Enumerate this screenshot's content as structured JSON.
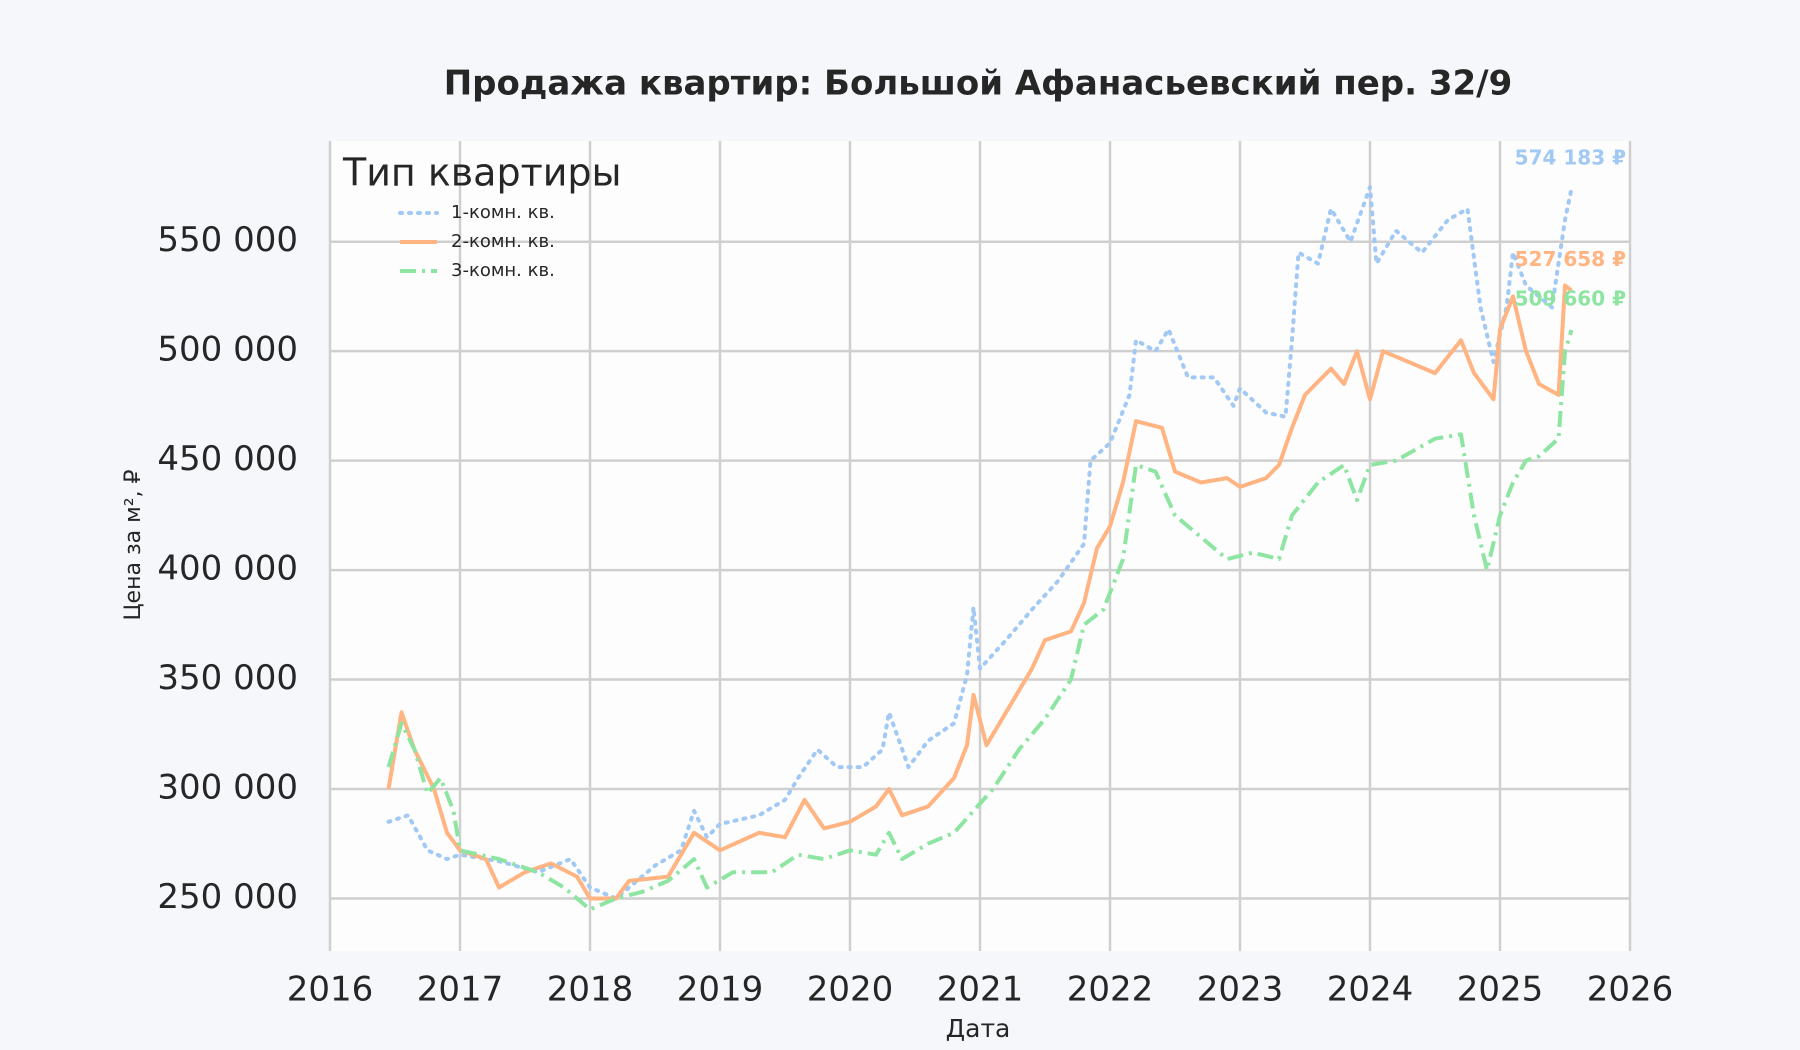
{
  "chart_data": {
    "type": "line",
    "title": "Продажа квартир: Большой Афанасьевский пер. 32/9",
    "x_label": "Дата",
    "y_label": "Цена за м², ₽",
    "legend_title": "Тип квартиры",
    "legend": "upper left",
    "grid": true,
    "xlim": [
      2016,
      2026
    ],
    "xticks": [
      2016,
      2017,
      2018,
      2019,
      2020,
      2021,
      2022,
      2023,
      2024,
      2025,
      2026
    ],
    "ylim": [
      226000,
      596000
    ],
    "yticks": [
      {
        "value": 250000,
        "label": "250 000"
      },
      {
        "value": 300000,
        "label": "300 000"
      },
      {
        "value": 350000,
        "label": "350 000"
      },
      {
        "value": 400000,
        "label": "400 000"
      },
      {
        "value": 450000,
        "label": "450 000"
      },
      {
        "value": 500000,
        "label": "500 000"
      },
      {
        "value": 550000,
        "label": "550 000"
      }
    ],
    "series": [
      {
        "name": "1-комн. кв.",
        "color": "#a1c9f4",
        "linestyle": "dotted",
        "x": [
          2016.45,
          2016.6,
          2016.75,
          2016.9,
          2017.0,
          2017.3,
          2017.6,
          2017.85,
          2018.0,
          2018.2,
          2018.5,
          2018.7,
          2018.8,
          2018.9,
          2019.0,
          2019.3,
          2019.5,
          2019.6,
          2019.75,
          2019.9,
          2020.1,
          2020.25,
          2020.3,
          2020.45,
          2020.6,
          2020.8,
          2020.9,
          2020.95,
          2021.0,
          2021.2,
          2021.4,
          2021.6,
          2021.8,
          2021.85,
          2022.0,
          2022.15,
          2022.2,
          2022.35,
          2022.45,
          2022.6,
          2022.8,
          2022.95,
          2023.0,
          2023.2,
          2023.35,
          2023.4,
          2023.45,
          2023.6,
          2023.7,
          2023.85,
          2024.0,
          2024.05,
          2024.2,
          2024.4,
          2024.6,
          2024.75,
          2024.85,
          2024.95,
          2025.05,
          2025.1,
          2025.2,
          2025.4,
          2025.5,
          2025.55
        ],
        "values": [
          285000,
          288000,
          272000,
          268000,
          270000,
          267000,
          262000,
          268000,
          255000,
          250000,
          265000,
          272000,
          290000,
          278000,
          284000,
          288000,
          295000,
          305000,
          318000,
          310000,
          310000,
          318000,
          335000,
          310000,
          322000,
          330000,
          352000,
          383000,
          355000,
          368000,
          382000,
          395000,
          412000,
          450000,
          458000,
          480000,
          505000,
          500000,
          510000,
          488000,
          488000,
          475000,
          483000,
          472000,
          470000,
          505000,
          545000,
          540000,
          565000,
          550000,
          575000,
          540000,
          555000,
          545000,
          560000,
          565000,
          520000,
          495000,
          520000,
          545000,
          530000,
          520000,
          560000,
          574183
        ]
      },
      {
        "name": "2-комн. кв.",
        "color": "#ffb482",
        "linestyle": "solid",
        "x": [
          2016.45,
          2016.55,
          2016.65,
          2016.8,
          2016.9,
          2017.0,
          2017.2,
          2017.3,
          2017.5,
          2017.7,
          2017.9,
          2018.0,
          2018.2,
          2018.3,
          2018.6,
          2018.8,
          2019.0,
          2019.3,
          2019.5,
          2019.65,
          2019.8,
          2020.0,
          2020.2,
          2020.3,
          2020.4,
          2020.6,
          2020.8,
          2020.9,
          2020.95,
          2021.05,
          2021.2,
          2021.4,
          2021.5,
          2021.7,
          2021.8,
          2021.9,
          2022.0,
          2022.1,
          2022.2,
          2022.4,
          2022.5,
          2022.7,
          2022.9,
          2023.0,
          2023.2,
          2023.3,
          2023.4,
          2023.5,
          2023.7,
          2023.8,
          2023.9,
          2024.0,
          2024.1,
          2024.3,
          2024.5,
          2024.7,
          2024.8,
          2024.95,
          2025.0,
          2025.1,
          2025.2,
          2025.3,
          2025.45,
          2025.5,
          2025.55
        ],
        "values": [
          300000,
          335000,
          318000,
          300000,
          280000,
          272000,
          268000,
          255000,
          262000,
          266000,
          260000,
          250000,
          250000,
          258000,
          260000,
          280000,
          272000,
          280000,
          278000,
          295000,
          282000,
          285000,
          292000,
          300000,
          288000,
          292000,
          305000,
          320000,
          343000,
          320000,
          335000,
          355000,
          368000,
          372000,
          385000,
          410000,
          420000,
          440000,
          468000,
          465000,
          445000,
          440000,
          442000,
          438000,
          442000,
          448000,
          465000,
          480000,
          492000,
          485000,
          500000,
          478000,
          500000,
          495000,
          490000,
          505000,
          490000,
          478000,
          510000,
          525000,
          500000,
          485000,
          480000,
          530000,
          527658
        ]
      },
      {
        "name": "3-комн. кв.",
        "color": "#8de5a1",
        "linestyle": "dashdot",
        "x": [
          2016.45,
          2016.55,
          2016.65,
          2016.75,
          2016.85,
          2016.95,
          2017.0,
          2017.3,
          2017.6,
          2017.8,
          2018.0,
          2018.2,
          2018.4,
          2018.6,
          2018.8,
          2018.9,
          2019.1,
          2019.4,
          2019.6,
          2019.8,
          2020.0,
          2020.2,
          2020.3,
          2020.4,
          2020.6,
          2020.8,
          2020.95,
          2021.1,
          2021.3,
          2021.5,
          2021.7,
          2021.8,
          2021.95,
          2022.1,
          2022.2,
          2022.35,
          2022.5,
          2022.7,
          2022.9,
          2023.1,
          2023.3,
          2023.4,
          2023.6,
          2023.8,
          2023.9,
          2024.0,
          2024.2,
          2024.5,
          2024.7,
          2024.8,
          2024.9,
          2025.0,
          2025.1,
          2025.2,
          2025.3,
          2025.45,
          2025.5,
          2025.55
        ],
        "values": [
          310000,
          330000,
          318000,
          298000,
          305000,
          290000,
          272000,
          268000,
          262000,
          255000,
          245000,
          250000,
          253000,
          258000,
          268000,
          255000,
          262000,
          262000,
          270000,
          268000,
          272000,
          270000,
          280000,
          268000,
          275000,
          280000,
          290000,
          300000,
          318000,
          332000,
          350000,
          375000,
          382000,
          405000,
          448000,
          445000,
          425000,
          415000,
          405000,
          408000,
          405000,
          425000,
          440000,
          448000,
          432000,
          448000,
          450000,
          460000,
          462000,
          425000,
          400000,
          425000,
          440000,
          450000,
          452000,
          460000,
          500000,
          509660
        ]
      }
    ],
    "annotations": [
      {
        "text": "574 183 ₽",
        "value": 574183,
        "color": "#a1c9f4"
      },
      {
        "text": "527 658 ₽",
        "value": 527658,
        "color": "#ffb482"
      },
      {
        "text": "509 660 ₽",
        "value": 509660,
        "color": "#8de5a1"
      }
    ]
  }
}
